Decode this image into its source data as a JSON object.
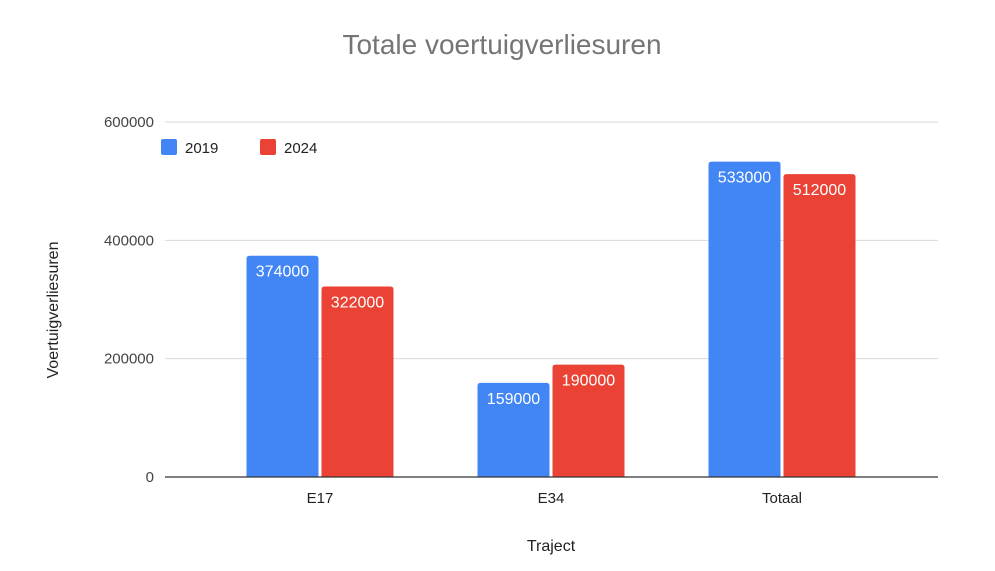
{
  "chart_data": {
    "type": "bar",
    "title": "Totale voertuigverliesuren",
    "xlabel": "Traject",
    "ylabel": "Voertuigverliesuren",
    "categories": [
      "E17",
      "E34",
      "Totaal"
    ],
    "series": [
      {
        "name": "2019",
        "color": "#4285f4",
        "values": [
          374000,
          159000,
          533000
        ],
        "labels": [
          "374000",
          "159000",
          "533000"
        ]
      },
      {
        "name": "2024",
        "color": "#ea4335",
        "values": [
          322000,
          190000,
          512000
        ],
        "labels": [
          "322000",
          "190000",
          "512000"
        ]
      }
    ],
    "ylim": [
      0,
      600000
    ],
    "yticks": [
      0,
      200000,
      400000,
      600000
    ],
    "ytick_labels": [
      "0",
      "200000",
      "400000",
      "600000"
    ],
    "grid": true,
    "legend_position": "top-left"
  }
}
